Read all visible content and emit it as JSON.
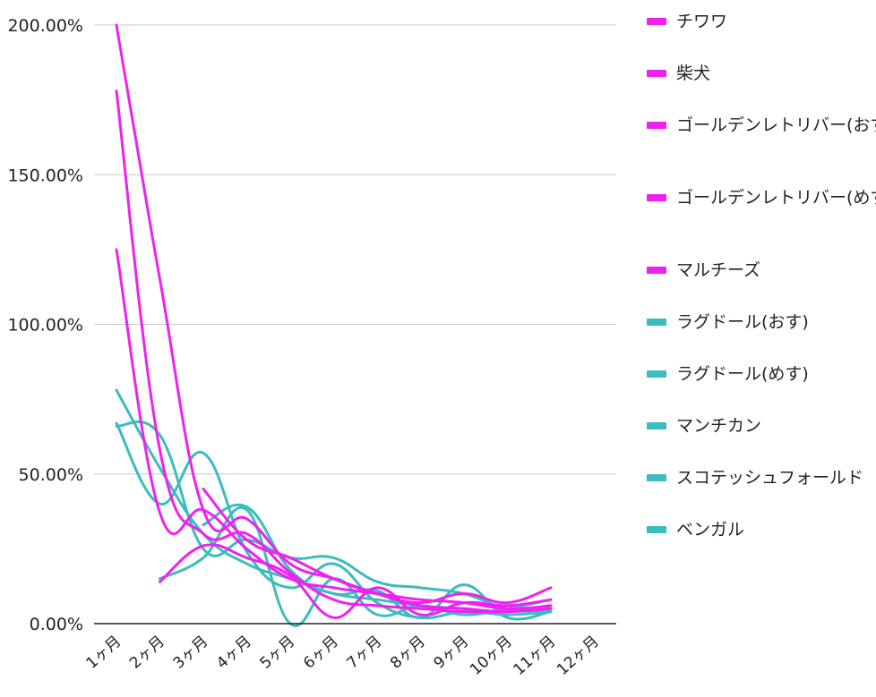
{
  "chart_data": {
    "type": "line",
    "title": "",
    "xlabel": "",
    "ylabel": "",
    "x": [
      "1ヶ月",
      "2ヶ月",
      "3ヶ月",
      "4ヶ月",
      "5ヶ月",
      "6ヶ月",
      "7ヶ月",
      "8ヶ月",
      "9ヶ月",
      "10ヶ月",
      "11ヶ月",
      "12ヶ月"
    ],
    "y_ticks": [
      "0.00%",
      "50.00%",
      "100.00%",
      "150.00%",
      "200.00%"
    ],
    "ylim": [
      0,
      200
    ],
    "y_unit": "%",
    "grid": true,
    "legend_position": "right",
    "smooth": true,
    "series": [
      {
        "name": "チワワ",
        "color": "#ee22ee",
        "values": [
          200,
          115,
          38,
          35,
          20,
          15,
          10,
          6,
          5,
          4,
          6,
          null
        ]
      },
      {
        "name": "柴犬",
        "color": "#ee22ee",
        "values": [
          178,
          58,
          30,
          30,
          17,
          8,
          6,
          5,
          4,
          4,
          5,
          null
        ]
      },
      {
        "name": "ゴールデンレトリバー(おす)",
        "color": "#ee22ee",
        "values": [
          125,
          37,
          38,
          25,
          15,
          12,
          10,
          8,
          7,
          5,
          6,
          null
        ]
      },
      {
        "name": "ゴールデンレトリバー(めす)",
        "color": "#ee22ee",
        "values": [
          null,
          14,
          26,
          22,
          16,
          2,
          12,
          3,
          7,
          6,
          8,
          null
        ]
      },
      {
        "name": "マルチーズ",
        "color": "#ee22ee",
        "values": [
          null,
          null,
          45,
          28,
          22,
          15,
          10,
          7,
          10,
          7,
          12,
          null
        ]
      },
      {
        "name": "ラグドール(おす)",
        "color": "#3bbcbe",
        "values": [
          78,
          52,
          30,
          20,
          15,
          10,
          8,
          6,
          5,
          4,
          5,
          null
        ]
      },
      {
        "name": "ラグドール(めす)",
        "color": "#3bbcbe",
        "values": [
          66,
          63,
          25,
          28,
          22,
          22,
          14,
          12,
          10,
          5,
          4,
          null
        ]
      },
      {
        "name": "マンチカン",
        "color": "#3bbcbe",
        "values": [
          67,
          40,
          57,
          24,
          12,
          20,
          7,
          2,
          4,
          3,
          4,
          null
        ]
      },
      {
        "name": "スコテッシュフォールド",
        "color": "#3bbcbe",
        "values": [
          null,
          15,
          22,
          38,
          0,
          15,
          3,
          6,
          3,
          5,
          8,
          null
        ]
      },
      {
        "name": "ベンガル",
        "color": "#3bbcbe",
        "values": [
          null,
          null,
          33,
          39,
          18,
          10,
          11,
          2,
          13,
          2,
          4,
          null
        ]
      }
    ]
  }
}
